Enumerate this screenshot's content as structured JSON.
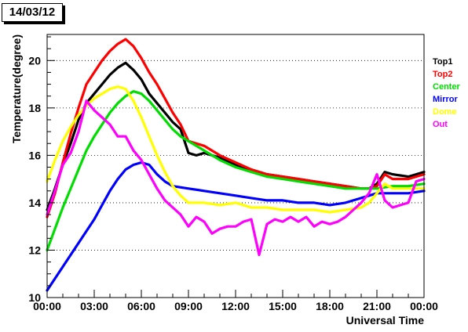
{
  "title": "14/03/12",
  "chart_data": {
    "type": "line",
    "title": "14/03/12",
    "xlabel": "Universal Time",
    "ylabel": "Temperature(degree)",
    "xlim": [
      0,
      24
    ],
    "ylim": [
      10,
      21.1
    ],
    "x_ticks": [
      0,
      3,
      6,
      9,
      12,
      15,
      18,
      21,
      24
    ],
    "x_tick_labels": [
      "00:00",
      "03:00",
      "06:00",
      "09:00",
      "12:00",
      "15:00",
      "18:00",
      "21:00",
      "00:00"
    ],
    "y_ticks": [
      10,
      12,
      14,
      16,
      18,
      20
    ],
    "y_tick_labels": [
      "10",
      "12",
      "14",
      "16",
      "18",
      "20"
    ],
    "grid": "horizontal dotted",
    "legend_placement": "right",
    "series": [
      {
        "name": "Top1",
        "color": "#000000",
        "x": [
          0,
          0.5,
          1,
          1.5,
          2,
          2.5,
          3,
          3.5,
          4,
          4.5,
          5,
          5.5,
          6,
          6.5,
          7,
          7.5,
          8,
          8.5,
          9,
          9.5,
          10,
          11,
          12,
          13,
          14,
          15,
          16,
          17,
          18,
          19,
          20,
          20.5,
          21,
          21.5,
          22,
          23,
          24
        ],
        "y": [
          13.7,
          14.6,
          15.6,
          16.5,
          17.5,
          18.2,
          18.6,
          19.0,
          19.4,
          19.7,
          19.9,
          19.6,
          19.2,
          18.6,
          18.2,
          17.8,
          17.4,
          17.1,
          16.1,
          16.0,
          16.1,
          15.9,
          15.6,
          15.4,
          15.2,
          15.1,
          15.0,
          14.9,
          14.8,
          14.7,
          14.6,
          14.6,
          14.8,
          15.3,
          15.2,
          15.1,
          15.3
        ]
      },
      {
        "name": "Top2",
        "color": "#ff0000",
        "x": [
          0,
          0.5,
          1,
          1.5,
          2,
          2.5,
          3,
          3.5,
          4,
          4.5,
          5,
          5.5,
          6,
          6.5,
          7,
          7.5,
          8,
          8.5,
          9,
          10,
          11,
          12,
          13,
          14,
          15,
          16,
          17,
          18,
          19,
          20,
          20.5,
          21,
          21.5,
          22,
          23,
          24
        ],
        "y": [
          13.4,
          14.4,
          15.7,
          16.9,
          18.0,
          19.0,
          19.5,
          20.0,
          20.4,
          20.7,
          20.9,
          20.6,
          20.1,
          19.5,
          19.0,
          18.4,
          17.8,
          17.3,
          16.6,
          16.4,
          16.0,
          15.7,
          15.4,
          15.2,
          15.1,
          15.0,
          14.9,
          14.8,
          14.7,
          14.6,
          14.6,
          14.7,
          15.2,
          15.0,
          15.0,
          15.2
        ]
      },
      {
        "name": "Center",
        "color": "#00dd00",
        "x": [
          0,
          0.5,
          1,
          1.5,
          2,
          2.5,
          3,
          3.5,
          4,
          4.5,
          5,
          5.5,
          6,
          6.5,
          7,
          7.5,
          8,
          8.5,
          9,
          10,
          11,
          12,
          13,
          14,
          15,
          16,
          17,
          18,
          19,
          20,
          21,
          22,
          23,
          24
        ],
        "y": [
          12.0,
          12.9,
          13.8,
          14.6,
          15.4,
          16.2,
          16.8,
          17.3,
          17.8,
          18.2,
          18.5,
          18.7,
          18.6,
          18.3,
          17.9,
          17.5,
          17.1,
          16.8,
          16.6,
          16.2,
          15.8,
          15.5,
          15.3,
          15.1,
          15.0,
          14.9,
          14.8,
          14.7,
          14.6,
          14.6,
          14.6,
          14.7,
          14.7,
          14.8
        ]
      },
      {
        "name": "Mirror",
        "color": "#0000ff",
        "x": [
          0,
          0.5,
          1,
          1.5,
          2,
          2.5,
          3,
          3.5,
          4,
          4.5,
          5,
          5.5,
          6,
          6.5,
          7,
          7.5,
          8,
          9,
          10,
          11,
          12,
          13,
          14,
          15,
          16,
          17,
          18,
          19,
          20,
          20.5,
          21,
          22,
          23,
          24
        ],
        "y": [
          10.3,
          10.8,
          11.3,
          11.8,
          12.3,
          12.8,
          13.3,
          13.9,
          14.5,
          15.0,
          15.4,
          15.6,
          15.7,
          15.6,
          15.2,
          14.9,
          14.7,
          14.6,
          14.5,
          14.4,
          14.3,
          14.2,
          14.1,
          14.1,
          14.0,
          14.0,
          13.9,
          14.0,
          14.2,
          14.3,
          14.4,
          14.4,
          14.4,
          14.5
        ]
      },
      {
        "name": "Dome",
        "color": "#ffff00",
        "x": [
          0,
          0.5,
          1,
          1.5,
          2,
          2.5,
          3,
          3.5,
          4,
          4.5,
          5,
          5.5,
          6,
          6.5,
          7,
          7.5,
          8,
          8.5,
          9,
          10,
          11,
          12,
          13,
          14,
          15,
          16,
          17,
          18,
          19,
          20,
          20.5,
          21,
          21.5,
          22,
          23,
          24
        ],
        "y": [
          14.9,
          15.8,
          16.6,
          17.2,
          17.7,
          18.1,
          18.4,
          18.6,
          18.8,
          18.9,
          18.8,
          18.3,
          17.6,
          16.8,
          16.0,
          15.3,
          14.7,
          14.3,
          14.0,
          14.0,
          13.9,
          14.0,
          13.8,
          13.8,
          13.7,
          13.7,
          13.7,
          13.6,
          13.7,
          13.8,
          14.0,
          14.4,
          14.8,
          14.6,
          14.6,
          14.6
        ]
      },
      {
        "name": "Out",
        "color": "#ff00ff",
        "x": [
          0,
          0.5,
          1,
          1.5,
          2,
          2.5,
          3,
          3.5,
          4,
          4.5,
          5,
          5.5,
          6,
          6.5,
          7,
          7.5,
          8,
          8.5,
          9,
          9.5,
          10,
          10.5,
          11,
          11.5,
          12,
          12.5,
          13,
          13.5,
          14,
          14.5,
          15,
          15.5,
          16,
          16.5,
          17,
          17.5,
          18,
          18.5,
          19,
          19.5,
          20,
          20.5,
          21,
          21.5,
          22,
          22.5,
          23,
          23.5,
          24
        ],
        "y": [
          13.5,
          14.5,
          15.6,
          16.1,
          17.0,
          18.3,
          17.9,
          17.6,
          17.3,
          16.8,
          16.8,
          16.2,
          15.8,
          15.2,
          14.6,
          14.1,
          13.8,
          13.5,
          13.0,
          13.4,
          13.2,
          12.7,
          12.9,
          13.0,
          13.0,
          13.2,
          13.3,
          11.8,
          13.1,
          13.3,
          13.2,
          13.4,
          13.2,
          13.4,
          13.0,
          13.2,
          13.1,
          13.2,
          13.4,
          13.7,
          14.0,
          14.4,
          15.2,
          14.1,
          13.8,
          13.9,
          14.0,
          14.9,
          15.0
        ]
      }
    ]
  }
}
